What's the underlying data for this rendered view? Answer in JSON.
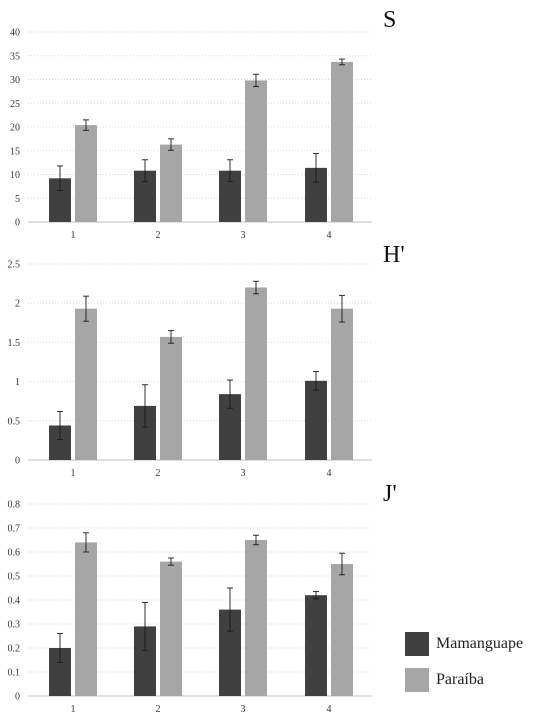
{
  "colors": {
    "Mamanguape": "#404040",
    "Paraíba": "#a6a6a6",
    "grid": "#d9d9d9",
    "axis": "#bfbfbf"
  },
  "legend": [
    {
      "name": "Mamanguape",
      "color": "#404040"
    },
    {
      "name": "Paraíba",
      "color": "#a6a6a6"
    }
  ],
  "chart_data": [
    {
      "type": "bar",
      "label": "S",
      "categories": [
        "1",
        "2",
        "3",
        "4"
      ],
      "ylim": [
        0,
        40
      ],
      "yticks": [
        "0",
        "5",
        "10",
        "15",
        "20",
        "25",
        "30",
        "35",
        "40"
      ],
      "grid": true,
      "series": [
        {
          "name": "Mamanguape",
          "values": [
            9.2,
            10.8,
            10.8,
            11.4
          ],
          "errors": [
            2.6,
            2.3,
            2.3,
            3.0
          ]
        },
        {
          "name": "Paraíba",
          "values": [
            20.4,
            16.3,
            29.8,
            33.7
          ],
          "errors": [
            1.1,
            1.2,
            1.3,
            0.6
          ]
        }
      ]
    },
    {
      "type": "bar",
      "label": "H'",
      "categories": [
        "1",
        "2",
        "3",
        "4"
      ],
      "ylim": [
        0,
        2.5
      ],
      "yticks": [
        "0",
        "0.5",
        "1",
        "1.5",
        "2",
        "2.5"
      ],
      "grid": true,
      "series": [
        {
          "name": "Mamanguape",
          "values": [
            0.44,
            0.69,
            0.84,
            1.01
          ],
          "errors": [
            0.18,
            0.27,
            0.18,
            0.12
          ]
        },
        {
          "name": "Paraíba",
          "values": [
            1.93,
            1.57,
            2.2,
            1.93
          ],
          "errors": [
            0.16,
            0.08,
            0.08,
            0.17
          ]
        }
      ]
    },
    {
      "type": "bar",
      "label": "J'",
      "categories": [
        "1",
        "2",
        "3",
        "4"
      ],
      "ylim": [
        0,
        0.8
      ],
      "yticks": [
        "0",
        "0.1",
        "0.2",
        "0.3",
        "0.4",
        "0.5",
        "0.6",
        "0.7",
        "0.8"
      ],
      "grid": true,
      "series": [
        {
          "name": "Mamanguape",
          "values": [
            0.2,
            0.29,
            0.36,
            0.42
          ],
          "errors": [
            0.06,
            0.1,
            0.09,
            0.015
          ]
        },
        {
          "name": "Paraíba",
          "values": [
            0.64,
            0.56,
            0.65,
            0.55
          ],
          "errors": [
            0.04,
            0.015,
            0.02,
            0.045
          ]
        }
      ]
    }
  ]
}
